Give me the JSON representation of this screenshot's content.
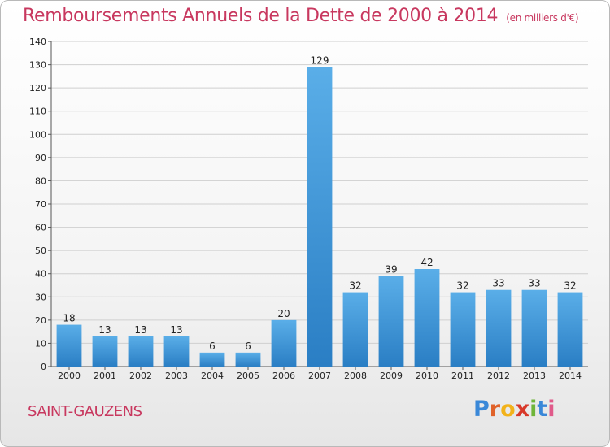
{
  "page": {
    "title": "Remboursements Annuels de la Dette de 2000 à 2014",
    "subtitle": "(en milliers d'€)",
    "commune": "SAINT-GAUZENS",
    "logo_text": "Proxiti"
  },
  "colors": {
    "title": "#c8385f",
    "bar_top": "#5aaee8",
    "bar_bottom": "#2a7ec4",
    "grid": "#cfcfcf"
  },
  "chart_data": {
    "type": "bar",
    "title": "Remboursements Annuels de la Dette de 2000 à 2014",
    "subtitle": "(en milliers d'€)",
    "xlabel": "",
    "ylabel": "",
    "ylim": [
      0,
      140
    ],
    "yticks": [
      0,
      10,
      20,
      30,
      40,
      50,
      60,
      70,
      80,
      90,
      100,
      110,
      120,
      130,
      140
    ],
    "grid": true,
    "categories": [
      "2000",
      "2001",
      "2002",
      "2003",
      "2004",
      "2005",
      "2006",
      "2007",
      "2008",
      "2009",
      "2010",
      "2011",
      "2012",
      "2013",
      "2014"
    ],
    "values": [
      18,
      13,
      13,
      13,
      6,
      6,
      20,
      129,
      32,
      39,
      42,
      32,
      33,
      33,
      32
    ],
    "data_labels": [
      "18",
      "13",
      "13",
      "13",
      "6",
      "6",
      "20",
      "129",
      "32",
      "39",
      "42",
      "32",
      "33",
      "33",
      "32"
    ]
  }
}
